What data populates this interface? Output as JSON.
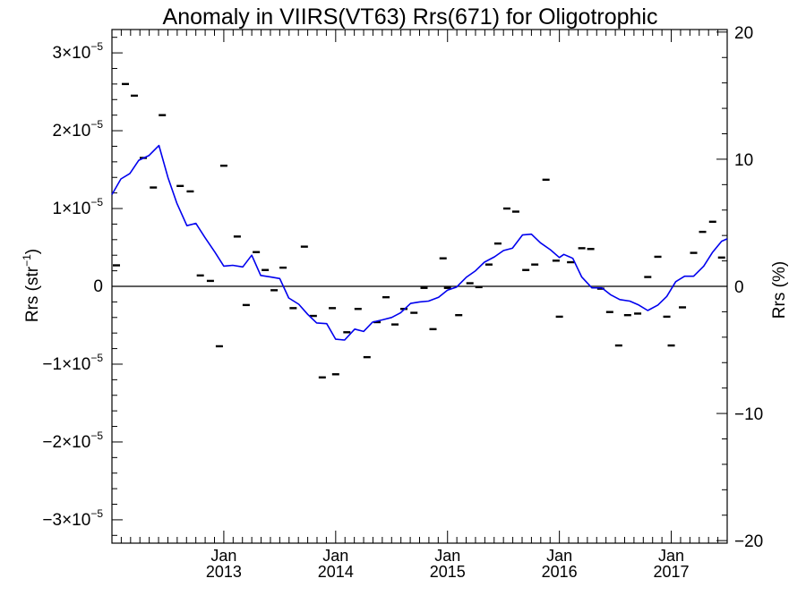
{
  "chart_data": {
    "type": "line",
    "title": "Anomaly in VIIRS(VT63) Rrs(671) for Oligotrophic",
    "ylabel_left": {
      "base": "Rrs (str",
      "sup": "−1",
      "end": ")"
    },
    "ylabel_right": "Rrs (%)",
    "xlim": [
      2012.0,
      2017.5
    ],
    "ylim": [
      -3.3e-05,
      3.3e-05
    ],
    "y2lim": [
      -20.2,
      20.2
    ],
    "x_ticks": [
      {
        "value": 2013.0,
        "month": "Jan",
        "year": "2013"
      },
      {
        "value": 2014.0,
        "month": "Jan",
        "year": "2014"
      },
      {
        "value": 2015.0,
        "month": "Jan",
        "year": "2015"
      },
      {
        "value": 2016.0,
        "month": "Jan",
        "year": "2016"
      },
      {
        "value": 2017.0,
        "month": "Jan",
        "year": "2017"
      }
    ],
    "y_ticks": [
      {
        "value": 3e-05,
        "mant": "3×10",
        "exp": "−5"
      },
      {
        "value": 2e-05,
        "mant": "2×10",
        "exp": "−5"
      },
      {
        "value": 1e-05,
        "mant": "1×10",
        "exp": "−5"
      },
      {
        "value": 0,
        "mant": "0",
        "exp": ""
      },
      {
        "value": -1e-05,
        "mant": "−1×10",
        "exp": "−5"
      },
      {
        "value": -2e-05,
        "mant": "−2×10",
        "exp": "−5"
      },
      {
        "value": -3e-05,
        "mant": "−3×10",
        "exp": "−5"
      }
    ],
    "y2_ticks": [
      {
        "value": 20,
        "label": "20"
      },
      {
        "value": 10,
        "label": "10"
      },
      {
        "value": 0,
        "label": "0"
      },
      {
        "value": -10,
        "label": "−10"
      },
      {
        "value": -20,
        "label": "−20"
      }
    ],
    "grid": false,
    "zero_line": true,
    "series": [
      {
        "style": "points",
        "color": "#000000",
        "points": [
          [
            2012.04,
            2.7e-06
          ],
          [
            2012.12,
            2.6e-05
          ],
          [
            2012.2,
            2.45e-05
          ],
          [
            2012.28,
            1.65e-05
          ],
          [
            2012.37,
            1.27e-05
          ],
          [
            2012.45,
            2.2e-05
          ],
          [
            2012.61,
            1.29e-05
          ],
          [
            2012.7,
            1.22e-05
          ],
          [
            2012.79,
            1.4e-06
          ],
          [
            2012.88,
            7e-07
          ],
          [
            2012.96,
            -7.7e-06
          ],
          [
            2013.0,
            1.55e-05
          ],
          [
            2013.12,
            6.4e-06
          ],
          [
            2013.2,
            -2.4e-06
          ],
          [
            2013.29,
            4.4e-06
          ],
          [
            2013.37,
            2.1e-06
          ],
          [
            2013.45,
            -5e-07
          ],
          [
            2013.53,
            2.4e-06
          ],
          [
            2013.62,
            -2.8e-06
          ],
          [
            2013.72,
            5.1e-06
          ],
          [
            2013.8,
            -3.8e-06
          ],
          [
            2013.88,
            -1.17e-05
          ],
          [
            2013.97,
            -2.8e-06
          ],
          [
            2014.0,
            -1.13e-05
          ],
          [
            2014.1,
            -5.9e-06
          ],
          [
            2014.2,
            -2.9e-06
          ],
          [
            2014.28,
            -9.1e-06
          ],
          [
            2014.37,
            -4.6e-06
          ],
          [
            2014.45,
            -1.4e-06
          ],
          [
            2014.53,
            -4.9e-06
          ],
          [
            2014.61,
            -2.9e-06
          ],
          [
            2014.7,
            -3.4e-06
          ],
          [
            2014.79,
            -2e-07
          ],
          [
            2014.87,
            -5.5e-06
          ],
          [
            2014.96,
            3.6e-06
          ],
          [
            2015.0,
            -2e-07
          ],
          [
            2015.1,
            -3.7e-06
          ],
          [
            2015.2,
            4e-07
          ],
          [
            2015.28,
            -1e-07
          ],
          [
            2015.37,
            2.8e-06
          ],
          [
            2015.45,
            5.5e-06
          ],
          [
            2015.53,
            1e-05
          ],
          [
            2015.61,
            9.6e-06
          ],
          [
            2015.7,
            2.1e-06
          ],
          [
            2015.78,
            2.8e-06
          ],
          [
            2015.88,
            1.37e-05
          ],
          [
            2015.97,
            3.3e-06
          ],
          [
            2016.0,
            -3.9e-06
          ],
          [
            2016.1,
            3.1e-06
          ],
          [
            2016.2,
            4.9e-06
          ],
          [
            2016.28,
            4.8e-06
          ],
          [
            2016.37,
            -3e-07
          ],
          [
            2016.45,
            -3.3e-06
          ],
          [
            2016.53,
            -7.6e-06
          ],
          [
            2016.61,
            -3.7e-06
          ],
          [
            2016.7,
            -3.5e-06
          ],
          [
            2016.79,
            1.2e-06
          ],
          [
            2016.88,
            3.8e-06
          ],
          [
            2016.96,
            -3.9e-06
          ],
          [
            2017.0,
            -7.6e-06
          ],
          [
            2017.1,
            -2.7e-06
          ],
          [
            2017.2,
            4.3e-06
          ],
          [
            2017.28,
            7e-06
          ],
          [
            2017.37,
            8.3e-06
          ],
          [
            2017.45,
            3.7e-06
          ]
        ]
      },
      {
        "style": "line",
        "color": "#0000ee",
        "points": [
          [
            2012.0,
            1.18e-05
          ],
          [
            2012.08,
            1.38e-05
          ],
          [
            2012.16,
            1.45e-05
          ],
          [
            2012.24,
            1.62e-05
          ],
          [
            2012.33,
            1.68e-05
          ],
          [
            2012.42,
            1.81e-05
          ],
          [
            2012.5,
            1.4e-05
          ],
          [
            2012.58,
            1.07e-05
          ],
          [
            2012.67,
            7.8e-06
          ],
          [
            2012.75,
            8.1e-06
          ],
          [
            2012.83,
            6.3e-06
          ],
          [
            2012.92,
            4.4e-06
          ],
          [
            2013.0,
            2.6e-06
          ],
          [
            2013.08,
            2.7e-06
          ],
          [
            2013.17,
            2.5e-06
          ],
          [
            2013.25,
            4e-06
          ],
          [
            2013.33,
            1.4e-06
          ],
          [
            2013.42,
            1.2e-06
          ],
          [
            2013.5,
            1e-06
          ],
          [
            2013.58,
            -1.5e-06
          ],
          [
            2013.67,
            -2.3e-06
          ],
          [
            2013.75,
            -3.6e-06
          ],
          [
            2013.83,
            -4.7e-06
          ],
          [
            2013.92,
            -4.8e-06
          ],
          [
            2014.0,
            -6.8e-06
          ],
          [
            2014.08,
            -6.9e-06
          ],
          [
            2014.17,
            -5.5e-06
          ],
          [
            2014.25,
            -5.8e-06
          ],
          [
            2014.33,
            -4.6e-06
          ],
          [
            2014.42,
            -4.3e-06
          ],
          [
            2014.5,
            -4e-06
          ],
          [
            2014.58,
            -3.4e-06
          ],
          [
            2014.67,
            -2.2e-06
          ],
          [
            2014.75,
            -2e-06
          ],
          [
            2014.83,
            -1.9e-06
          ],
          [
            2014.92,
            -1.4e-06
          ],
          [
            2015.0,
            -5e-07
          ],
          [
            2015.08,
            -1e-07
          ],
          [
            2015.17,
            1.2e-06
          ],
          [
            2015.25,
            2e-06
          ],
          [
            2015.33,
            3.1e-06
          ],
          [
            2015.42,
            3.8e-06
          ],
          [
            2015.5,
            4.6e-06
          ],
          [
            2015.58,
            4.9e-06
          ],
          [
            2015.67,
            6.6e-06
          ],
          [
            2015.75,
            6.7e-06
          ],
          [
            2015.83,
            5.6e-06
          ],
          [
            2015.92,
            4.7e-06
          ],
          [
            2016.0,
            3.7e-06
          ],
          [
            2016.04,
            4.1e-06
          ],
          [
            2016.12,
            3.6e-06
          ],
          [
            2016.2,
            1.2e-06
          ],
          [
            2016.29,
            -2e-07
          ],
          [
            2016.38,
            -2e-07
          ],
          [
            2016.46,
            -1.1e-06
          ],
          [
            2016.54,
            -1.7e-06
          ],
          [
            2016.63,
            -1.9e-06
          ],
          [
            2016.71,
            -2.4e-06
          ],
          [
            2016.79,
            -3.1e-06
          ],
          [
            2016.88,
            -2.4e-06
          ],
          [
            2016.96,
            -1.3e-06
          ],
          [
            2017.04,
            6e-07
          ],
          [
            2017.12,
            1.3e-06
          ],
          [
            2017.2,
            1.3e-06
          ],
          [
            2017.29,
            2.6e-06
          ],
          [
            2017.37,
            4.4e-06
          ],
          [
            2017.45,
            5.8e-06
          ],
          [
            2017.5,
            6.1e-06
          ]
        ]
      }
    ]
  }
}
